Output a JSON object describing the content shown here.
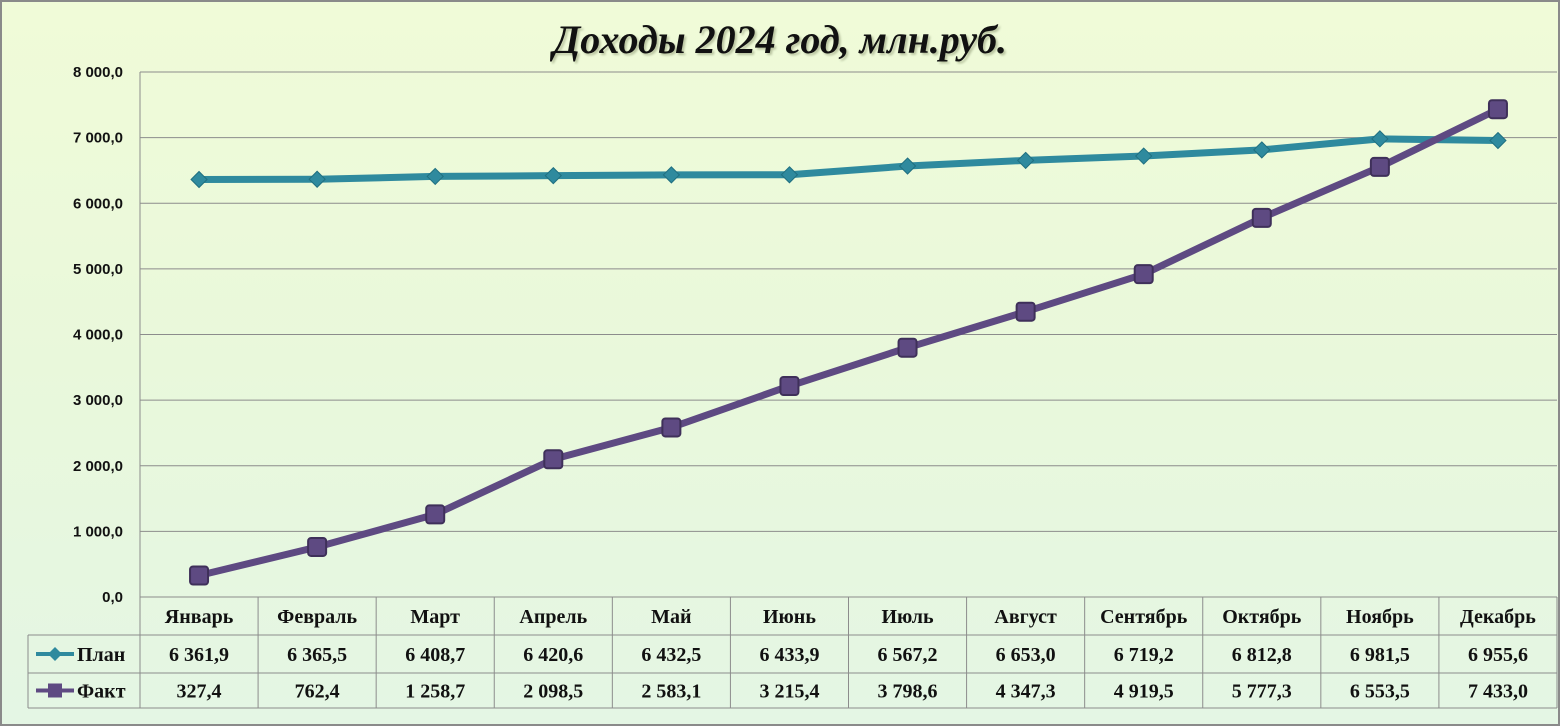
{
  "chart_data": {
    "type": "line",
    "title": "Доходы 2024 год, млн.руб.",
    "categories": [
      "Январь",
      "Февраль",
      "Март",
      "Апрель",
      "Май",
      "Июнь",
      "Июль",
      "Август",
      "Сентябрь",
      "Октябрь",
      "Ноябрь",
      "Декабрь"
    ],
    "ylim": [
      0,
      8000
    ],
    "y_ticks": [
      "0,0",
      "1 000,0",
      "2 000,0",
      "3 000,0",
      "4 000,0",
      "5 000,0",
      "6 000,0",
      "7 000,0",
      "8 000,0"
    ],
    "grid": true,
    "legend": "data-table",
    "series": [
      {
        "name": "План",
        "color": "#2f8a9e",
        "marker": "diamond",
        "values": [
          6361.9,
          6365.5,
          6408.7,
          6420.6,
          6432.5,
          6433.9,
          6567.2,
          6653.0,
          6719.2,
          6812.8,
          6981.5,
          6955.6
        ],
        "labels": [
          "6 361,9",
          "6 365,5",
          "6 408,7",
          "6 420,6",
          "6 432,5",
          "6 433,9",
          "6 567,2",
          "6 653,0",
          "6 719,2",
          "6 812,8",
          "6 981,5",
          "6 955,6"
        ]
      },
      {
        "name": "Факт",
        "color": "#5e4a82",
        "marker": "square",
        "values": [
          327.4,
          762.4,
          1258.7,
          2098.5,
          2583.1,
          3215.4,
          3798.6,
          4347.3,
          4919.5,
          5777.3,
          6553.5,
          7433.0
        ],
        "labels": [
          "327,4",
          "762,4",
          "1 258,7",
          "2 098,5",
          "2 583,1",
          "3 215,4",
          "3 798,6",
          "4 347,3",
          "4 919,5",
          "5 777,3",
          "6 553,5",
          "7 433,0"
        ]
      }
    ]
  }
}
